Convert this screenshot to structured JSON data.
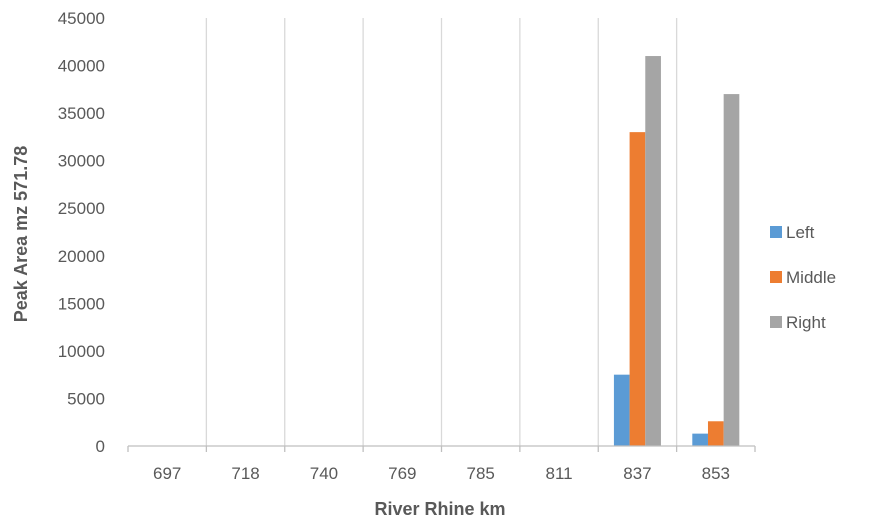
{
  "chart_data": {
    "type": "bar",
    "title": "",
    "xlabel": "River Rhine km",
    "ylabel": "Peak Area mz 571.78",
    "categories": [
      "697",
      "718",
      "740",
      "769",
      "785",
      "811",
      "837",
      "853"
    ],
    "series": [
      {
        "name": "Left",
        "color": "#5B9BD5",
        "values": [
          0,
          0,
          0,
          0,
          0,
          0,
          7500,
          1300
        ]
      },
      {
        "name": "Middle",
        "color": "#ED7D31",
        "values": [
          0,
          0,
          0,
          0,
          0,
          0,
          33000,
          2600
        ]
      },
      {
        "name": "Right",
        "color": "#A5A5A5",
        "values": [
          0,
          0,
          0,
          0,
          0,
          0,
          41000,
          37000
        ]
      }
    ],
    "ylim": [
      0,
      45000
    ],
    "yticks": [
      "0",
      "5000",
      "10000",
      "15000",
      "20000",
      "25000",
      "30000",
      "35000",
      "40000",
      "45000"
    ],
    "grid": "vertical category separators",
    "legend_position": "right"
  }
}
